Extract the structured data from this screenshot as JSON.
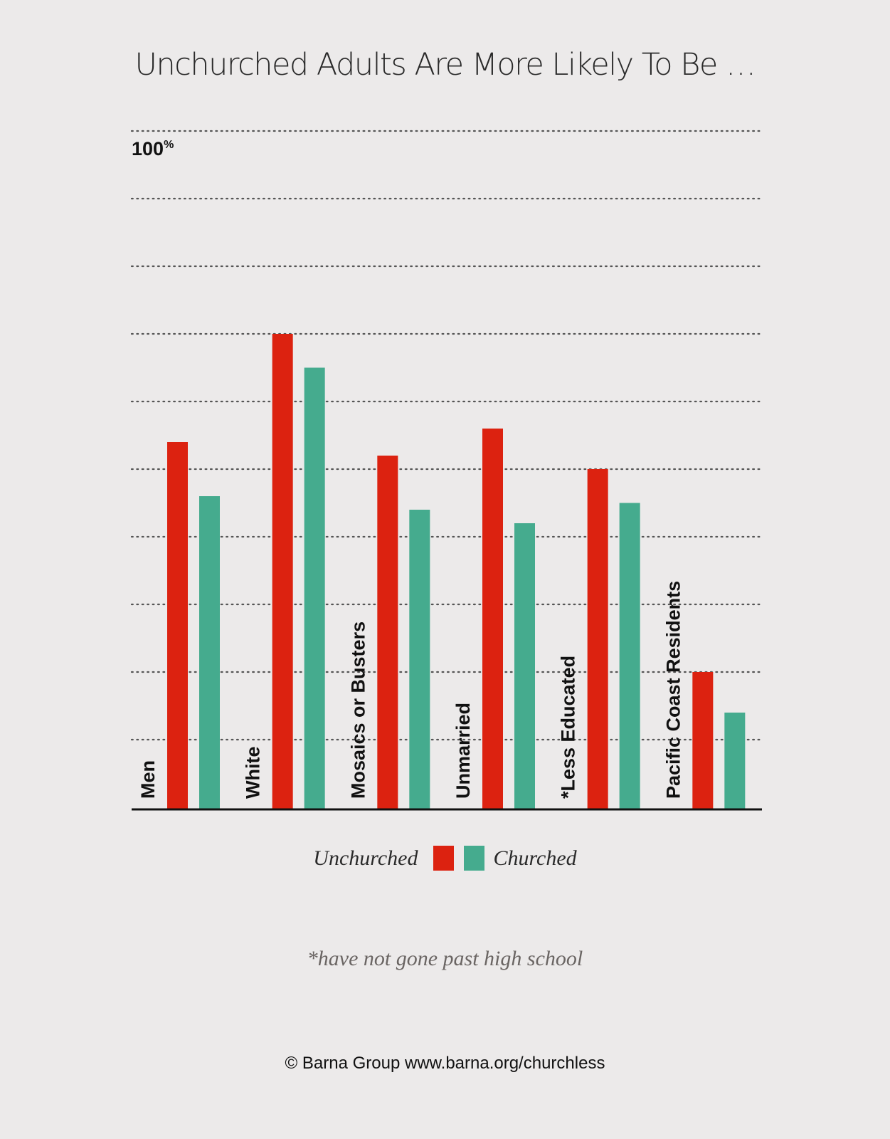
{
  "chart_data": {
    "type": "bar",
    "title": "Unchurched Adults Are More Likely To Be …",
    "y_tick_label": "100",
    "y_tick_unit": "%",
    "ylim": [
      0,
      100
    ],
    "grid": true,
    "categories": [
      "Men",
      "White",
      "Mosaics or Busters",
      "Unmarried",
      "*Less Educated",
      "Pacific Coast Residents"
    ],
    "series": [
      {
        "name": "Unchurched",
        "color": "#dc2210",
        "values": [
          54,
          70,
          52,
          56,
          50,
          20
        ]
      },
      {
        "name": "Churched",
        "color": "#45ab8e",
        "values": [
          46,
          65,
          44,
          42,
          45,
          14
        ]
      }
    ],
    "legend_placement": "bottom"
  },
  "footnote": "*have not gone past high school",
  "credit": "© Barna Group www.barna.org/churchless"
}
